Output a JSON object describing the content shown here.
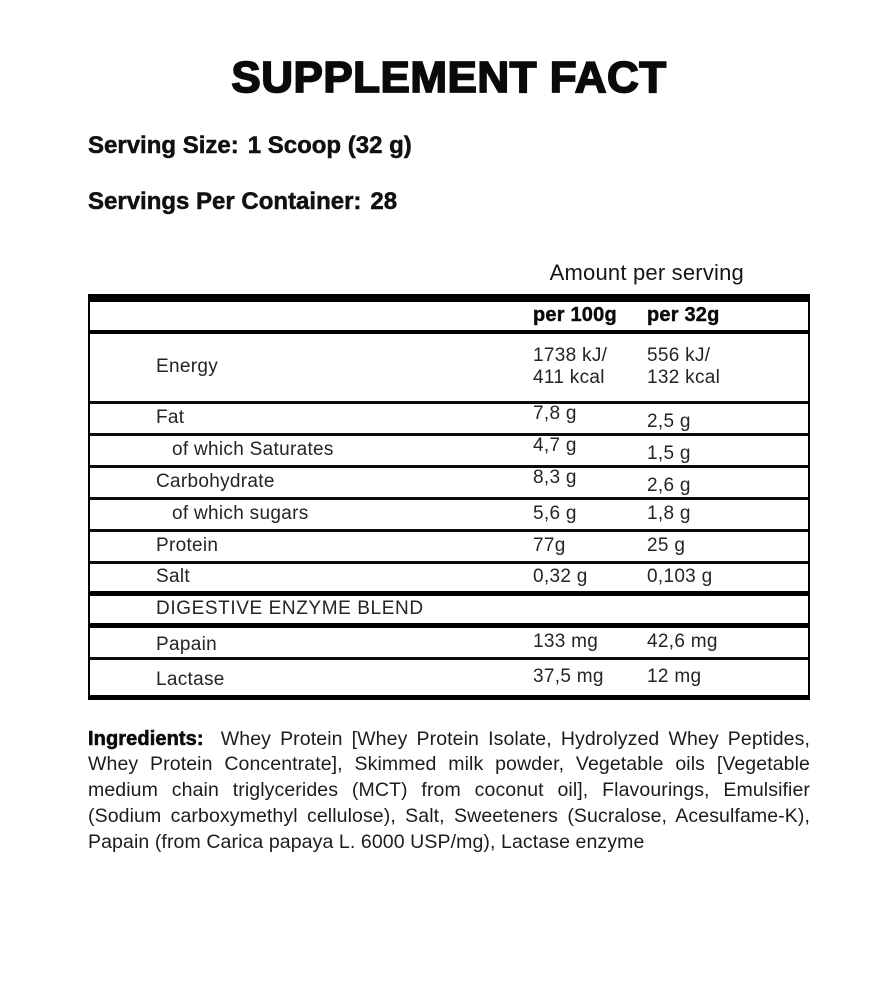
{
  "title": "SUPPLEMENT FACT",
  "serving": {
    "size_label": "Serving Size:",
    "size_value": "1 Scoop (32 g)",
    "container_label": "Servings Per Container:",
    "container_value": "28"
  },
  "table": {
    "amount_header": "Amount per serving",
    "columns": [
      "per 100g",
      "per 32g"
    ],
    "rows": [
      {
        "label": "Energy",
        "per100g": "1738 kJ/\n411 kcal",
        "per32g": "556 kJ/\n132 kcal"
      },
      {
        "label": "Fat",
        "per100g": "7,8 g",
        "per32g": "2,5 g"
      },
      {
        "label": "of which Saturates",
        "per100g": "4,7 g",
        "per32g": "1,5 g"
      },
      {
        "label": "Carbohydrate",
        "per100g": "8,3 g",
        "per32g": "2,6 g"
      },
      {
        "label": "of which sugars",
        "per100g": "5,6 g",
        "per32g": "1,8 g"
      },
      {
        "label": "Protein",
        "per100g": "77g",
        "per32g": "25 g"
      },
      {
        "label": "Salt",
        "per100g": "0,32 g",
        "per32g": "0,103 g"
      },
      {
        "label": "DIGESTIVE ENZYME BLEND",
        "per100g": "",
        "per32g": ""
      },
      {
        "label": "Papain",
        "per100g": "133 mg",
        "per32g": "42,6 mg"
      },
      {
        "label": "Lactase",
        "per100g": "37,5 mg",
        "per32g": "12 mg"
      }
    ]
  },
  "ingredients": {
    "label": "Ingredients:",
    "text": "Whey Protein [Whey Protein Isolate, Hydrolyzed Whey Peptides, Whey Protein Concentrate], Skimmed milk powder, Vegetable oils [Vegetable medium chain triglycerides (MCT) from coconut oil], Flavourings, Emulsifier (Sodium carboxymethyl cellulose), Salt, Sweeteners (Sucralose, Acesulfame-K), Papain (from Carica papaya L. 6000 USP/mg), Lactase enzyme"
  },
  "colors": {
    "background": "#ffffff",
    "text": "#1b1b1b",
    "border": "#000000"
  }
}
